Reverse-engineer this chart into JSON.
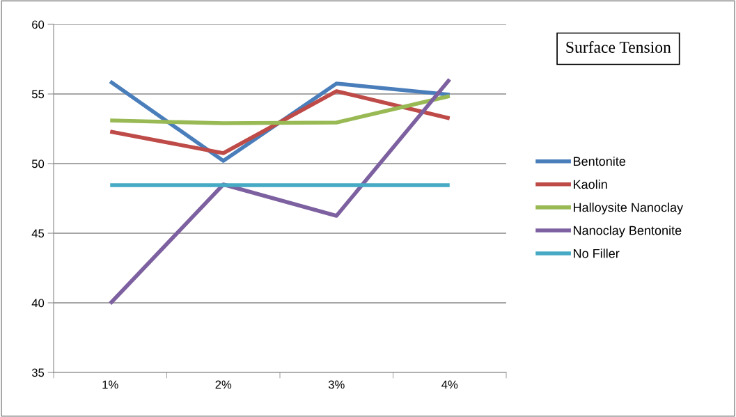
{
  "chart_data": {
    "type": "line",
    "title": "Surface Tension",
    "categories": [
      "1%",
      "2%",
      "3%",
      "4%"
    ],
    "series": [
      {
        "name": "Bentonite",
        "color": "#4a7ebb",
        "values": [
          55.9,
          50.2,
          55.75,
          54.95
        ]
      },
      {
        "name": "Kaolin",
        "color": "#be4b48",
        "values": [
          52.3,
          50.75,
          55.2,
          53.25
        ]
      },
      {
        "name": "Halloysite Nanoclay",
        "color": "#98b954",
        "values": [
          53.1,
          52.9,
          52.95,
          54.85
        ]
      },
      {
        "name": "Nanoclay Bentonite",
        "color": "#7d60a0",
        "values": [
          39.95,
          48.5,
          46.25,
          56.05
        ]
      },
      {
        "name": "No Filler",
        "color": "#46aac5",
        "values": [
          48.45,
          48.45,
          48.45,
          48.45
        ]
      }
    ],
    "ylim": [
      35,
      60
    ],
    "yticks": [
      35,
      40,
      45,
      50,
      55,
      60
    ],
    "grid": "y",
    "legend": "right",
    "marker": "none",
    "line_style": "solid"
  }
}
